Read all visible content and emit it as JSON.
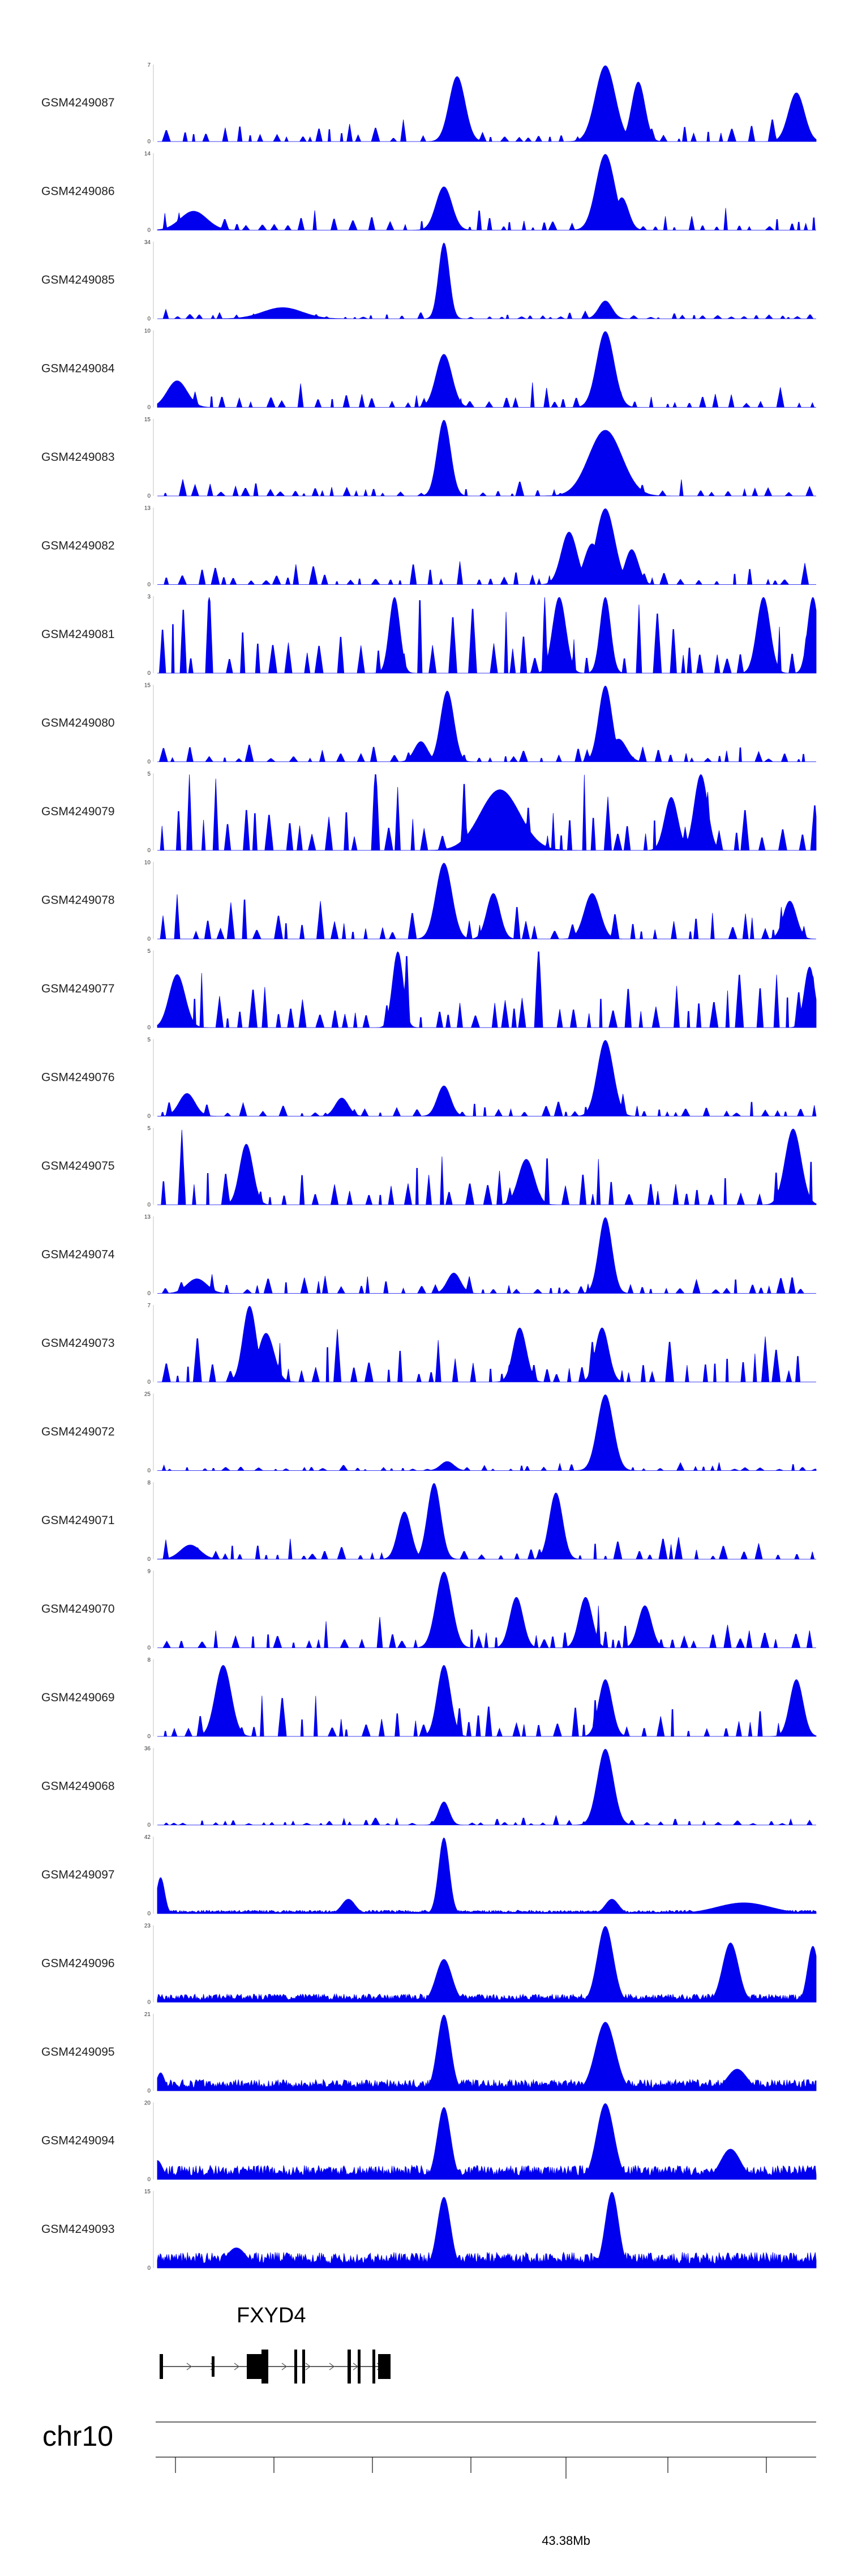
{
  "chart_data": {
    "type": "area",
    "title": "",
    "color": "#0000ee",
    "chromosome": "chr10",
    "gene": {
      "name": "FXYD4"
    },
    "x_tick_label": "43.38Mb",
    "series": [
      {
        "name": "GSM4249087",
        "ymax": 7,
        "kind": "sparse",
        "bg": 1.4,
        "peaks": [
          [
            0.455,
            6.0,
            0.012
          ],
          [
            0.68,
            7.0,
            0.015
          ],
          [
            0.73,
            5.5,
            0.01
          ],
          [
            0.97,
            4.5,
            0.012
          ]
        ]
      },
      {
        "name": "GSM4249086",
        "ymax": 14,
        "kind": "sparse",
        "bg": 2.6,
        "peaks": [
          [
            0.435,
            8.0,
            0.012
          ],
          [
            0.68,
            14.0,
            0.014
          ],
          [
            0.705,
            6.0,
            0.01
          ],
          [
            0.055,
            3.5,
            0.02
          ]
        ]
      },
      {
        "name": "GSM4249085",
        "ymax": 34,
        "kind": "sparse",
        "bg": 2.5,
        "peaks": [
          [
            0.435,
            34.0,
            0.008
          ],
          [
            0.19,
            5.0,
            0.03
          ],
          [
            0.68,
            8.0,
            0.01
          ]
        ]
      },
      {
        "name": "GSM4249084",
        "ymax": 10,
        "kind": "sparse",
        "bg": 2.2,
        "peaks": [
          [
            0.435,
            7.0,
            0.012
          ],
          [
            0.68,
            10.0,
            0.013
          ],
          [
            0.03,
            3.5,
            0.015
          ]
        ]
      },
      {
        "name": "GSM4249083",
        "ymax": 15,
        "kind": "sparse",
        "bg": 2.2,
        "peaks": [
          [
            0.435,
            15.0,
            0.01
          ],
          [
            0.68,
            13.0,
            0.025
          ],
          [
            0.7,
            6.0,
            0.012
          ]
        ]
      },
      {
        "name": "GSM4249082",
        "ymax": 13,
        "kind": "sparse",
        "bg": 2.6,
        "peaks": [
          [
            0.68,
            13.0,
            0.014
          ],
          [
            0.625,
            9.0,
            0.012
          ],
          [
            0.66,
            7.0,
            0.012
          ],
          [
            0.72,
            6.0,
            0.01
          ]
        ]
      },
      {
        "name": "GSM4249081",
        "ymax": 3,
        "kind": "sparse",
        "bg": 2.4,
        "peaks": [
          [
            0.36,
            3.0,
            0.008
          ],
          [
            0.61,
            3.0,
            0.01
          ],
          [
            0.68,
            3.0,
            0.008
          ],
          [
            0.92,
            3.0,
            0.01
          ],
          [
            0.995,
            3.0,
            0.008
          ]
        ]
      },
      {
        "name": "GSM4249080",
        "ymax": 15,
        "kind": "sparse",
        "bg": 2.5,
        "peaks": [
          [
            0.44,
            14.0,
            0.01
          ],
          [
            0.68,
            15.0,
            0.01
          ],
          [
            0.4,
            4.0,
            0.01
          ],
          [
            0.7,
            4.5,
            0.012
          ]
        ]
      },
      {
        "name": "GSM4249079",
        "ymax": 5,
        "kind": "sparse",
        "bg": 3.6,
        "peaks": [
          [
            0.825,
            5.0,
            0.01
          ],
          [
            0.52,
            4.0,
            0.03
          ],
          [
            0.78,
            3.5,
            0.01
          ]
        ]
      },
      {
        "name": "GSM4249078",
        "ymax": 10,
        "kind": "sparse",
        "bg": 4.0,
        "peaks": [
          [
            0.435,
            10.0,
            0.012
          ],
          [
            0.51,
            6.0,
            0.01
          ],
          [
            0.66,
            6.0,
            0.012
          ],
          [
            0.96,
            5.0,
            0.01
          ]
        ]
      },
      {
        "name": "GSM4249077",
        "ymax": 5,
        "kind": "sparse",
        "bg": 3.4,
        "peaks": [
          [
            0.365,
            5.0,
            0.008
          ],
          [
            0.99,
            4.0,
            0.008
          ],
          [
            0.03,
            3.5,
            0.012
          ]
        ]
      },
      {
        "name": "GSM4249076",
        "ymax": 5,
        "kind": "sparse",
        "bg": 0.9,
        "peaks": [
          [
            0.68,
            5.0,
            0.012
          ],
          [
            0.435,
            2.0,
            0.01
          ],
          [
            0.045,
            1.5,
            0.012
          ],
          [
            0.28,
            1.2,
            0.01
          ]
        ]
      },
      {
        "name": "GSM4249075",
        "ymax": 5,
        "kind": "sparse",
        "bg": 2.8,
        "peaks": [
          [
            0.965,
            5.0,
            0.012
          ],
          [
            0.135,
            4.0,
            0.01
          ],
          [
            0.56,
            3.0,
            0.012
          ]
        ]
      },
      {
        "name": "GSM4249074",
        "ymax": 13,
        "kind": "sparse",
        "bg": 2.6,
        "peaks": [
          [
            0.68,
            13.0,
            0.01
          ],
          [
            0.45,
            3.5,
            0.01
          ],
          [
            0.06,
            2.5,
            0.015
          ]
        ]
      },
      {
        "name": "GSM4249073",
        "ymax": 7,
        "kind": "sparse",
        "bg": 3.2,
        "peaks": [
          [
            0.14,
            7.0,
            0.01
          ],
          [
            0.165,
            4.5,
            0.012
          ],
          [
            0.55,
            5.0,
            0.01
          ],
          [
            0.675,
            5.0,
            0.01
          ]
        ]
      },
      {
        "name": "GSM4249072",
        "ymax": 25,
        "kind": "sparse",
        "bg": 2.0,
        "peaks": [
          [
            0.68,
            25.0,
            0.012
          ],
          [
            0.44,
            3.0,
            0.01
          ]
        ]
      },
      {
        "name": "GSM4249071",
        "ymax": 8,
        "kind": "sparse",
        "bg": 1.6,
        "peaks": [
          [
            0.42,
            8.0,
            0.01
          ],
          [
            0.605,
            7.0,
            0.01
          ],
          [
            0.375,
            5.0,
            0.01
          ],
          [
            0.05,
            1.5,
            0.015
          ]
        ]
      },
      {
        "name": "GSM4249070",
        "ymax": 9,
        "kind": "sparse",
        "bg": 3.0,
        "peaks": [
          [
            0.435,
            9.0,
            0.012
          ],
          [
            0.545,
            6.0,
            0.01
          ],
          [
            0.65,
            6.0,
            0.01
          ],
          [
            0.74,
            5.0,
            0.01
          ]
        ]
      },
      {
        "name": "GSM4249069",
        "ymax": 8,
        "kind": "sparse",
        "bg": 3.0,
        "peaks": [
          [
            0.1,
            7.5,
            0.012
          ],
          [
            0.435,
            7.5,
            0.01
          ],
          [
            0.68,
            6.0,
            0.01
          ],
          [
            0.97,
            6.0,
            0.01
          ]
        ]
      },
      {
        "name": "GSM4249068",
        "ymax": 36,
        "kind": "sparse",
        "bg": 3.0,
        "peaks": [
          [
            0.68,
            36.0,
            0.012
          ],
          [
            0.435,
            11.0,
            0.008
          ]
        ]
      },
      {
        "name": "GSM4249097",
        "ymax": 42,
        "kind": "dense",
        "bg": 1.5,
        "peaks": [
          [
            0.005,
            20.0,
            0.006
          ],
          [
            0.435,
            42.0,
            0.008
          ],
          [
            0.29,
            8.0,
            0.01
          ],
          [
            0.69,
            8.0,
            0.01
          ],
          [
            0.89,
            6.0,
            0.04
          ]
        ]
      },
      {
        "name": "GSM4249096",
        "ymax": 23,
        "kind": "dense",
        "bg": 2.0,
        "peaks": [
          [
            0.435,
            13.0,
            0.012
          ],
          [
            0.68,
            23.0,
            0.012
          ],
          [
            0.87,
            18.0,
            0.012
          ],
          [
            0.995,
            17.0,
            0.008
          ]
        ]
      },
      {
        "name": "GSM4249095",
        "ymax": 21,
        "kind": "dense",
        "bg": 2.5,
        "peaks": [
          [
            0.435,
            21.0,
            0.01
          ],
          [
            0.68,
            19.0,
            0.015
          ],
          [
            0.88,
            6.0,
            0.015
          ],
          [
            0.005,
            5.0,
            0.006
          ]
        ]
      },
      {
        "name": "GSM4249094",
        "ymax": 20,
        "kind": "dense",
        "bg": 3.0,
        "peaks": [
          [
            0.435,
            19.0,
            0.01
          ],
          [
            0.68,
            20.0,
            0.013
          ],
          [
            0.87,
            8.0,
            0.015
          ],
          [
            0.0,
            5.0,
            0.008
          ]
        ]
      },
      {
        "name": "GSM4249093",
        "ymax": 15,
        "kind": "dense",
        "bg": 2.5,
        "peaks": [
          [
            0.435,
            14.0,
            0.01
          ],
          [
            0.69,
            15.0,
            0.01
          ],
          [
            0.12,
            4.0,
            0.015
          ]
        ]
      }
    ]
  }
}
